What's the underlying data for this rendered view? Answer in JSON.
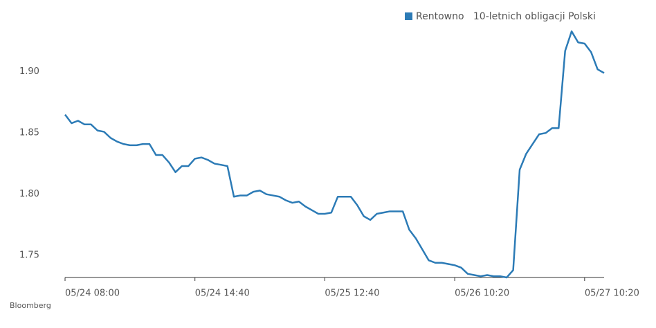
{
  "chart_data": {
    "type": "line",
    "categories": [
      "05/24 08:00",
      null,
      null,
      null,
      null,
      null,
      null,
      null,
      null,
      null,
      null,
      null,
      null,
      null,
      null,
      null,
      null,
      null,
      null,
      null,
      "05/24 14:40",
      null,
      null,
      null,
      null,
      null,
      null,
      null,
      null,
      null,
      null,
      null,
      null,
      null,
      null,
      null,
      null,
      null,
      null,
      null,
      "05/25 12:40",
      null,
      null,
      null,
      null,
      null,
      null,
      null,
      null,
      null,
      null,
      null,
      null,
      null,
      null,
      null,
      null,
      null,
      null,
      null,
      "05/26 10:20",
      null,
      null,
      null,
      null,
      null,
      null,
      null,
      null,
      null,
      null,
      null,
      null,
      null,
      null,
      null,
      null,
      null,
      null,
      null,
      "05/27 10:20",
      null,
      null,
      null
    ],
    "series": [
      {
        "name": "Rentowno   10-letnich obligacji Polski",
        "color": "#2c7bb6",
        "values": [
          1.865,
          1.858,
          1.86,
          1.857,
          1.857,
          1.852,
          1.851,
          1.846,
          1.843,
          1.841,
          1.84,
          1.84,
          1.841,
          1.841,
          1.832,
          1.832,
          1.826,
          1.818,
          1.823,
          1.823,
          1.829,
          1.83,
          1.828,
          1.825,
          1.824,
          1.823,
          1.798,
          1.799,
          1.799,
          1.802,
          1.803,
          1.8,
          1.799,
          1.798,
          1.795,
          1.793,
          1.794,
          1.79,
          1.787,
          1.784,
          1.784,
          1.785,
          1.798,
          1.798,
          1.798,
          1.791,
          1.782,
          1.779,
          1.784,
          1.785,
          1.786,
          1.786,
          1.786,
          1.771,
          1.764,
          1.755,
          1.746,
          1.744,
          1.744,
          1.743,
          1.742,
          1.74,
          1.735,
          1.734,
          1.733,
          1.734,
          1.733,
          1.733,
          1.732,
          1.738,
          1.82,
          1.833,
          1.841,
          1.849,
          1.85,
          1.854,
          1.854,
          1.917,
          1.933,
          1.924,
          1.923,
          1.916,
          1.902,
          1.899
        ]
      }
    ],
    "ylim": [
      1.732,
      1.936
    ],
    "yticks": [
      {
        "value": 1.9,
        "label": "1.90"
      },
      1.85,
      {
        "value": 1.8,
        "label": "1.80"
      },
      1.75
    ],
    "source": "Bloomberg",
    "grid": false
  }
}
